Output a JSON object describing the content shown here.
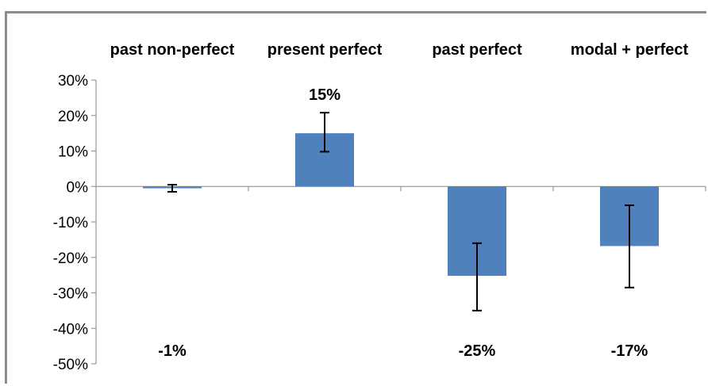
{
  "chart_data": {
    "type": "bar",
    "categories": [
      "past non-perfect",
      "present perfect",
      "past perfect",
      "modal + perfect"
    ],
    "values": [
      -0.5,
      15,
      -25.2,
      -16.8
    ],
    "data_labels": [
      "-1%",
      "15%",
      "-25%",
      "-17%"
    ],
    "error_low": [
      -1.5,
      9.8,
      -35,
      -28.5
    ],
    "error_high": [
      0.5,
      20.8,
      -16,
      -5.3
    ],
    "ylim": [
      -50,
      30
    ],
    "y_ticks": [
      30,
      20,
      10,
      0,
      -10,
      -20,
      -30,
      -40,
      -50
    ],
    "y_tick_labels": [
      "30%",
      "20%",
      "10%",
      "0%",
      "-10%",
      "-20%",
      "-30%",
      "-40%",
      "-50%"
    ],
    "category_label_position": "top",
    "negative_data_label_position": "bottom",
    "grid": false,
    "legend": "none",
    "title": "",
    "xlabel": "",
    "ylabel": "",
    "bar_color": "#4f81bd",
    "error_bar_color": "#000000",
    "axis_color": "#868686"
  }
}
